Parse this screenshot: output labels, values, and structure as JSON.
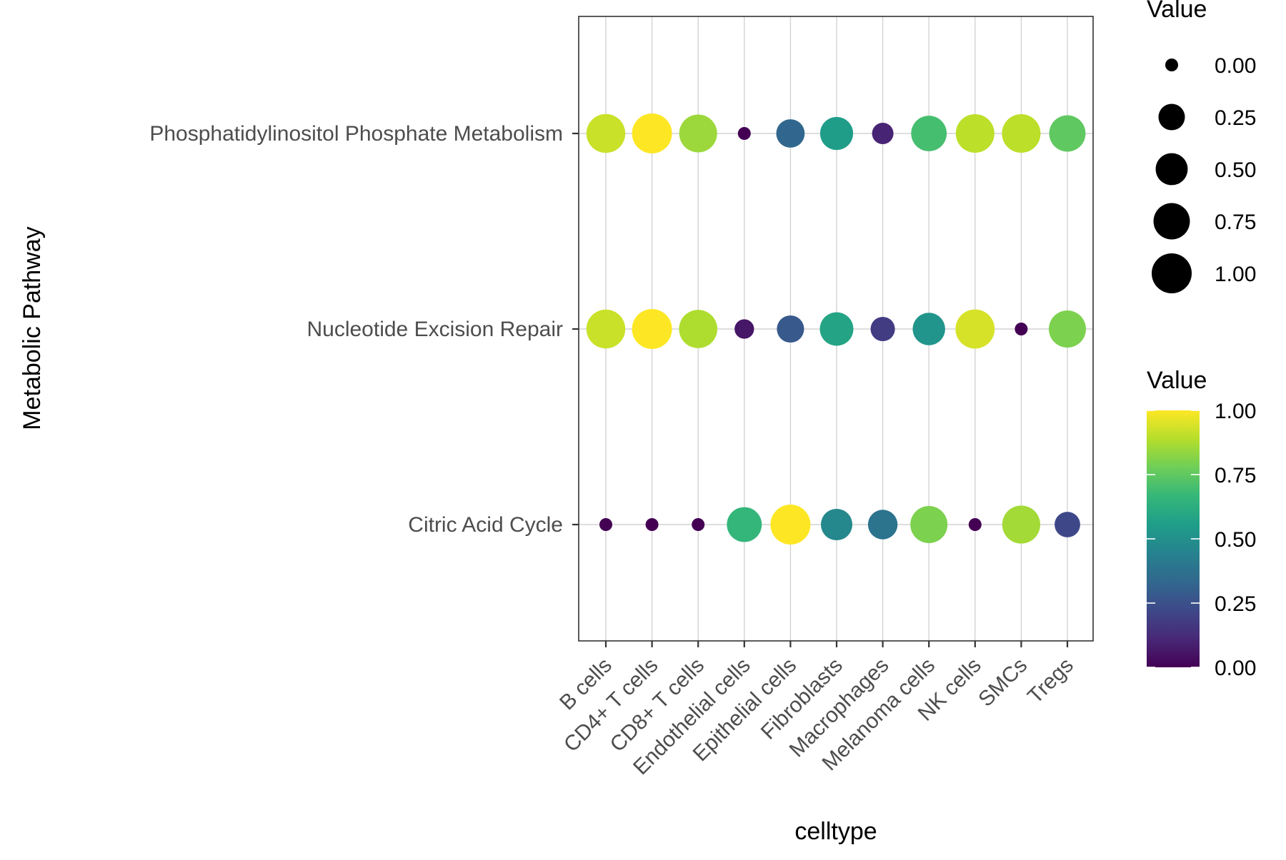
{
  "chart_data": {
    "type": "scatter",
    "subtype": "dot-plot",
    "title": "",
    "xlabel": "celltype",
    "ylabel": "Metabolic Pathway",
    "categories": [
      "B cells",
      "CD4+ T cells",
      "CD8+ T cells",
      "Endothelial cells",
      "Epithelial cells",
      "Fibroblasts",
      "Macrophages",
      "Melanoma cells",
      "NK cells",
      "SMCs",
      "Tregs"
    ],
    "rows": [
      "Phosphatidylinositol Phosphate Metabolism",
      "Nucleotide Excision Repair ",
      "Citric Acid Cycle"
    ],
    "series": [
      {
        "name": "Phosphatidylinositol Phosphate Metabolism",
        "values": [
          0.92,
          1.0,
          0.85,
          0.0,
          0.33,
          0.55,
          0.1,
          0.7,
          0.9,
          0.9,
          0.75
        ]
      },
      {
        "name": "Nucleotide Excision Repair ",
        "values": [
          0.92,
          1.0,
          0.88,
          0.06,
          0.28,
          0.58,
          0.18,
          0.52,
          0.94,
          0.0,
          0.8
        ]
      },
      {
        "name": "Citric Acid Cycle",
        "values": [
          0.0,
          0.0,
          0.0,
          0.66,
          1.0,
          0.47,
          0.38,
          0.8,
          0.0,
          0.86,
          0.22
        ]
      }
    ],
    "size_legend": {
      "title": "Value",
      "breaks": [
        "0.00",
        "0.25",
        "0.50",
        "0.75",
        "1.00"
      ],
      "values": [
        0,
        0.25,
        0.5,
        0.75,
        1.0
      ]
    },
    "color_legend": {
      "title": "Value",
      "breaks": [
        "1.00",
        "0.75",
        "0.50",
        "0.25",
        "0.00"
      ],
      "values": [
        1.0,
        0.75,
        0.5,
        0.25,
        0.0
      ]
    },
    "colormap": "viridis",
    "grid": true,
    "legend_position": "right",
    "colors": {
      "panel_border": "#333333",
      "grid": "#d3d3d3",
      "axis_text": "#4d4d4d",
      "axis_title": "#000000"
    }
  }
}
